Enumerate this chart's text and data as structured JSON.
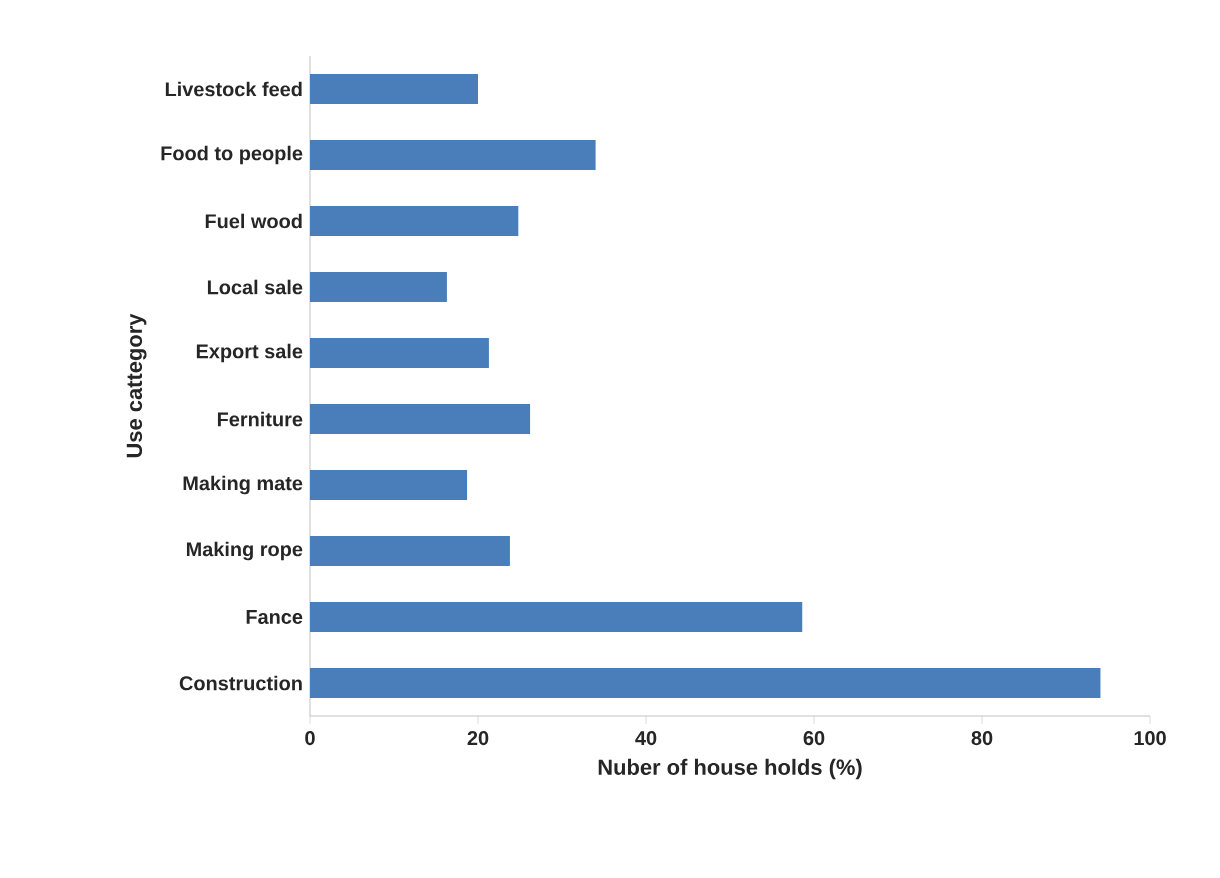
{
  "chart_data": {
    "type": "bar",
    "orientation": "horizontal",
    "xlabel": "Nuber of house holds (%)",
    "ylabel": "Use cattegory",
    "categories": [
      "Livestock feed",
      "Food to people",
      "Fuel wood",
      "Local sale",
      "Export sale",
      "Ferniture",
      "Making mate",
      "Making rope",
      "Fance",
      "Construction"
    ],
    "values": [
      20,
      34,
      24.8,
      16.3,
      21.3,
      26.2,
      18.7,
      23.8,
      58.6,
      94.1
    ],
    "color": "#4a7ebb",
    "xlim": [
      0,
      100
    ],
    "xticks": [
      0,
      20,
      40,
      60,
      80,
      100
    ],
    "grid": false
  }
}
